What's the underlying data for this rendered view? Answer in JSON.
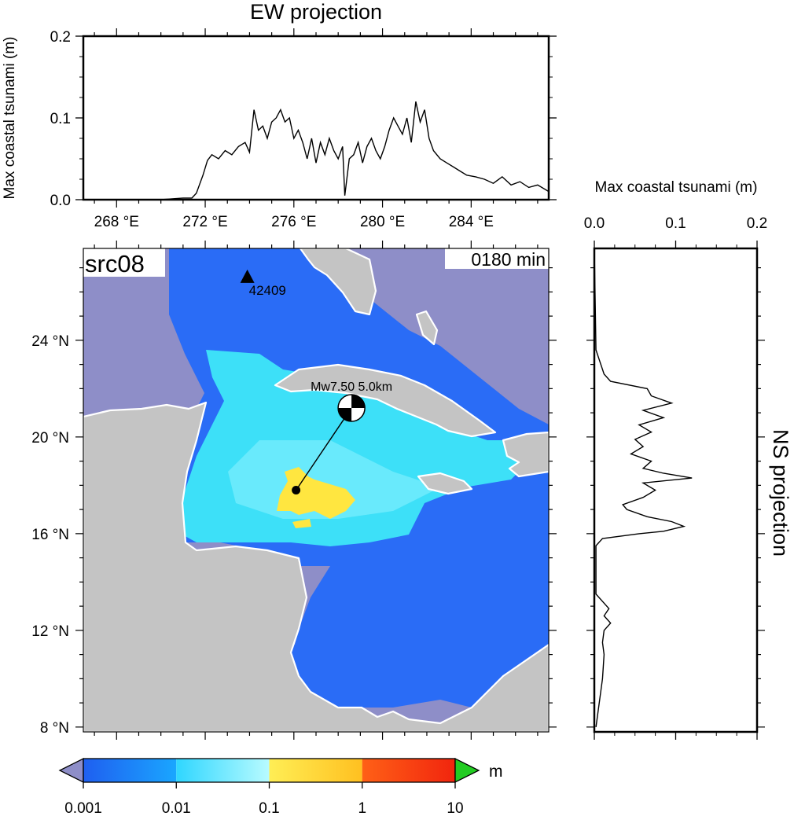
{
  "chart_data": [
    {
      "type": "line",
      "title": "EW projection",
      "ylabel": "Max coastal tsunami (m)",
      "xlim": [
        266.5,
        287.5
      ],
      "ylim": [
        0.0,
        0.2
      ],
      "x_ticks": [
        268,
        272,
        276,
        280,
        284
      ],
      "x_tick_labels": [
        "268 °E",
        "272 °E",
        "276 °E",
        "280 °E",
        "284 °E"
      ],
      "y_tick_labels": [
        "0.0",
        "0.1",
        "0.2"
      ],
      "y_ticks": [
        0.0,
        0.1,
        0.2
      ],
      "series": [
        {
          "x": [
            266.5,
            270.0,
            271.0,
            271.4,
            271.6,
            271.9,
            272.1,
            272.3,
            272.6,
            272.9,
            273.2,
            273.5,
            273.8,
            274.0,
            274.2,
            274.4,
            274.6,
            274.8,
            275.0,
            275.2,
            275.4,
            275.6,
            275.8,
            276.0,
            276.2,
            276.4,
            276.6,
            276.8,
            277.0,
            277.2,
            277.4,
            277.6,
            277.8,
            278.0,
            278.2,
            278.3,
            278.5,
            278.7,
            278.9,
            279.1,
            279.3,
            279.5,
            279.7,
            279.9,
            280.1,
            280.3,
            280.5,
            280.7,
            280.9,
            281.1,
            281.3,
            281.5,
            281.7,
            281.9,
            282.1,
            282.3,
            282.6,
            282.9,
            283.2,
            283.5,
            283.8,
            284.2,
            284.6,
            285.0,
            285.4,
            285.8,
            286.2,
            286.6,
            287.0,
            287.5
          ],
          "y": [
            0.0,
            0.0,
            0.002,
            0.002,
            0.008,
            0.03,
            0.048,
            0.055,
            0.05,
            0.06,
            0.055,
            0.065,
            0.07,
            0.058,
            0.11,
            0.085,
            0.09,
            0.075,
            0.095,
            0.1,
            0.11,
            0.095,
            0.1,
            0.075,
            0.085,
            0.07,
            0.05,
            0.075,
            0.045,
            0.07,
            0.055,
            0.075,
            0.06,
            0.05,
            0.065,
            0.005,
            0.05,
            0.055,
            0.07,
            0.045,
            0.065,
            0.075,
            0.06,
            0.05,
            0.065,
            0.085,
            0.1,
            0.09,
            0.08,
            0.1,
            0.07,
            0.12,
            0.095,
            0.11,
            0.075,
            0.06,
            0.05,
            0.045,
            0.04,
            0.035,
            0.03,
            0.028,
            0.025,
            0.02,
            0.028,
            0.018,
            0.022,
            0.015,
            0.018,
            0.01
          ]
        }
      ]
    },
    {
      "type": "line",
      "title": "NS projection",
      "xlabel": "Max coastal tsunami (m)",
      "xlim": [
        0.0,
        0.2
      ],
      "ylim": [
        7.8,
        27.8
      ],
      "x_ticks": [
        0.0,
        0.1,
        0.2
      ],
      "x_tick_labels": [
        "0.0",
        "0.1",
        "0.2"
      ],
      "series": [
        {
          "lat": [
            8.0,
            10.0,
            11.0,
            11.5,
            12.0,
            12.3,
            12.6,
            12.9,
            13.5,
            15.5,
            15.8,
            16.0,
            16.1,
            16.3,
            16.5,
            16.7,
            17.0,
            17.2,
            17.5,
            17.8,
            18.1,
            18.3,
            18.5,
            18.7,
            19.0,
            19.3,
            19.6,
            19.9,
            20.2,
            20.5,
            20.8,
            21.1,
            21.4,
            21.7,
            22.0,
            22.3,
            22.6,
            23.0,
            23.3,
            23.6,
            27.8
          ],
          "x": [
            0.002,
            0.01,
            0.012,
            0.01,
            0.012,
            0.02,
            0.012,
            0.018,
            0.002,
            0.002,
            0.01,
            0.055,
            0.085,
            0.11,
            0.095,
            0.065,
            0.04,
            0.035,
            0.06,
            0.075,
            0.06,
            0.12,
            0.085,
            0.06,
            0.07,
            0.045,
            0.06,
            0.05,
            0.07,
            0.055,
            0.085,
            0.06,
            0.095,
            0.07,
            0.065,
            0.02,
            0.012,
            0.008,
            0.005,
            0.002,
            0.0
          ]
        }
      ]
    },
    {
      "type": "heatmap",
      "panel_label": "src08",
      "time_label": "0180 min",
      "station_label": "42409",
      "event_label": "Mw7.50  5.0km",
      "lon_range": [
        266.5,
        287.5
      ],
      "lat_range": [
        7.8,
        27.8
      ],
      "y_ticks": [
        8,
        12,
        16,
        20,
        24
      ],
      "y_tick_labels": [
        "8 °N",
        "12 °N",
        "16 °N",
        "20 °N",
        "24 °N"
      ],
      "station": {
        "lon": 273.9,
        "lat": 26.6
      },
      "epicenter": {
        "lon": 278.6,
        "lat": 21.2
      },
      "source_point": {
        "lon": 276.1,
        "lat": 17.8
      },
      "colorbar": {
        "unit": "m",
        "tick_labels": [
          "0.001",
          "0.01",
          "0.1",
          "1",
          "10"
        ],
        "colors": [
          "#1f5ff0",
          "#2fd6ff",
          "#b8fbff",
          "#ffe84a",
          "#ff5a10",
          "#e81010"
        ],
        "under_color": "#8e8ec8",
        "over_color": "#22cc22"
      },
      "colors": {
        "ocean": "#8e8ec8",
        "land": "#c4c4c4",
        "deep_wave": "#2a6cf6",
        "mid_wave": "#3de0f8",
        "high_wave": "#ffe640"
      }
    }
  ]
}
